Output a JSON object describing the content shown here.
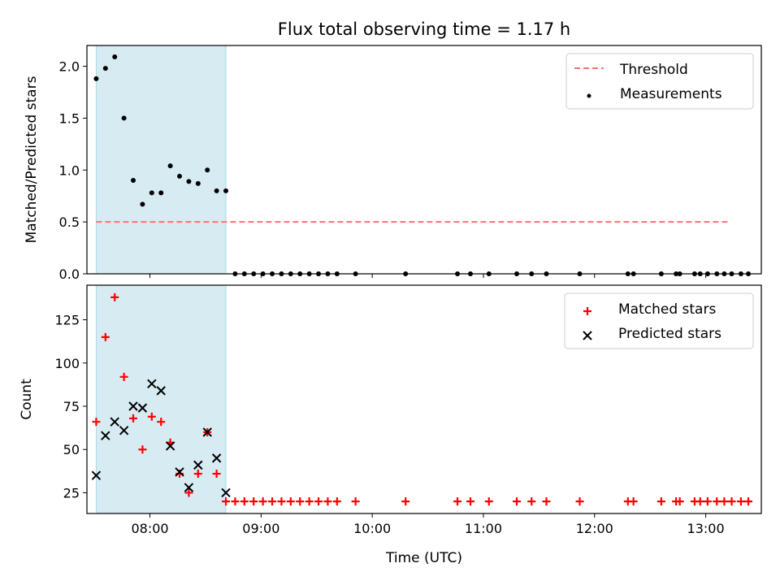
{
  "chart_data": [
    {
      "type": "scatter",
      "title": "Flux total observing time = 1.17 h",
      "ylabel": "Matched/Predicted stars",
      "xlabel": "",
      "xlim": [
        "07:26",
        "13:30"
      ],
      "ylim": [
        0,
        2.2
      ],
      "yticks": [
        "0.0",
        "0.5",
        "1.0",
        "1.5",
        "2.0"
      ],
      "xticks": [
        "08:00",
        "09:00",
        "10:00",
        "11:00",
        "12:00",
        "13:00"
      ],
      "shaded_region": {
        "from": "07:31",
        "to": "08:41",
        "color": "#add8e6"
      },
      "legend_position": "upper right",
      "colors": {
        "threshold": "#ff7070",
        "measurements": "#000000"
      },
      "series": [
        {
          "name": "Threshold",
          "kind": "dashed-line",
          "x": [
            "07:31",
            "13:13"
          ],
          "y": [
            0.5,
            0.5
          ]
        },
        {
          "name": "Measurements",
          "kind": "points",
          "x": [
            "07:31",
            "07:36",
            "07:41",
            "07:46",
            "07:51",
            "07:56",
            "08:01",
            "08:06",
            "08:11",
            "08:16",
            "08:21",
            "08:26",
            "08:31",
            "08:36",
            "08:41",
            "08:46",
            "08:51",
            "08:56",
            "09:01",
            "09:06",
            "09:11",
            "09:16",
            "09:21",
            "09:26",
            "09:31",
            "09:36",
            "09:41",
            "09:51",
            "10:18",
            "10:46",
            "10:53",
            "11:03",
            "11:18",
            "11:26",
            "11:34",
            "11:52",
            "12:18",
            "12:21",
            "12:36",
            "12:44",
            "12:46",
            "12:54",
            "12:57",
            "13:01",
            "13:06",
            "13:10",
            "13:14",
            "13:19",
            "13:23"
          ],
          "y": [
            1.88,
            1.98,
            2.09,
            1.5,
            0.9,
            0.67,
            0.78,
            0.78,
            1.04,
            0.94,
            0.89,
            0.87,
            1.0,
            0.8,
            0.8,
            0,
            0,
            0,
            0,
            0,
            0,
            0,
            0,
            0,
            0,
            0,
            0,
            0,
            0,
            0,
            0,
            0,
            0,
            0,
            0,
            0,
            0,
            0,
            0,
            0,
            0,
            0,
            0,
            0,
            0,
            0,
            0,
            0,
            0
          ]
        }
      ]
    },
    {
      "type": "scatter",
      "title": "",
      "ylabel": "Count",
      "xlabel": "Time (UTC)",
      "xlim": [
        "07:26",
        "13:30"
      ],
      "ylim": [
        13,
        145
      ],
      "yticks": [
        "25",
        "50",
        "75",
        "100",
        "125"
      ],
      "xticks": [
        "08:00",
        "09:00",
        "10:00",
        "11:00",
        "12:00",
        "13:00"
      ],
      "shaded_region": {
        "from": "07:31",
        "to": "08:41",
        "color": "#add8e6"
      },
      "legend_position": "upper right",
      "colors": {
        "matched": "#ff0000",
        "predicted": "#000000"
      },
      "series": [
        {
          "name": "Matched stars",
          "kind": "plus",
          "x": [
            "07:31",
            "07:36",
            "07:41",
            "07:46",
            "07:51",
            "07:56",
            "08:01",
            "08:06",
            "08:11",
            "08:16",
            "08:21",
            "08:26",
            "08:31",
            "08:36",
            "08:41",
            "08:46",
            "08:51",
            "08:56",
            "09:01",
            "09:06",
            "09:11",
            "09:16",
            "09:21",
            "09:26",
            "09:31",
            "09:36",
            "09:41",
            "09:51",
            "10:18",
            "10:46",
            "10:53",
            "11:03",
            "11:18",
            "11:26",
            "11:34",
            "11:52",
            "12:18",
            "12:21",
            "12:36",
            "12:44",
            "12:46",
            "12:54",
            "12:57",
            "13:01",
            "13:06",
            "13:10",
            "13:14",
            "13:19",
            "13:23"
          ],
          "y": [
            66,
            115,
            138,
            92,
            68,
            50,
            69,
            66,
            54,
            36,
            25,
            36,
            60,
            36,
            20,
            20,
            20,
            20,
            20,
            20,
            20,
            20,
            20,
            20,
            20,
            20,
            20,
            20,
            20,
            20,
            20,
            20,
            20,
            20,
            20,
            20,
            20,
            20,
            20,
            20,
            20,
            20,
            20,
            20,
            20,
            20,
            20,
            20,
            20
          ]
        },
        {
          "name": "Predicted stars",
          "kind": "cross",
          "x": [
            "07:31",
            "07:36",
            "07:41",
            "07:46",
            "07:51",
            "07:56",
            "08:01",
            "08:06",
            "08:11",
            "08:16",
            "08:21",
            "08:26",
            "08:31",
            "08:36",
            "08:41"
          ],
          "y": [
            35,
            58,
            66,
            61,
            75,
            74,
            88,
            84,
            52,
            37,
            28,
            41,
            60,
            45,
            25
          ]
        }
      ]
    }
  ]
}
